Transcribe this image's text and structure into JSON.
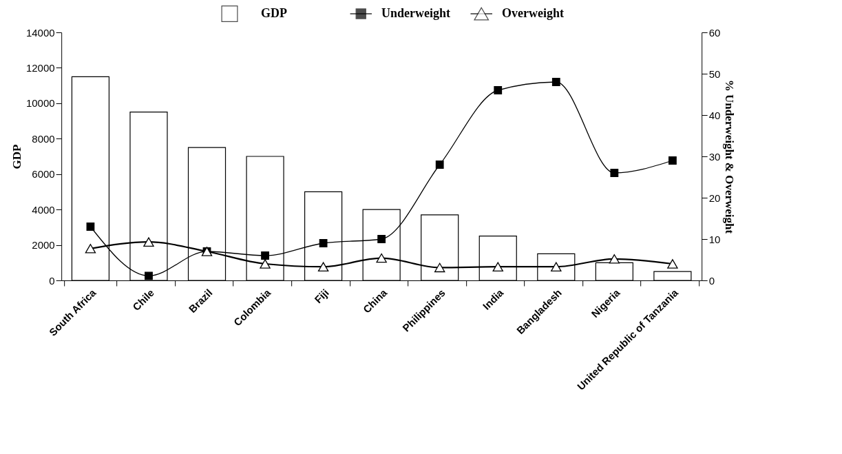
{
  "chart_data": {
    "type": "bar",
    "categories": [
      "South Africa",
      "Chile",
      "Brazil",
      "Colombia",
      "Fiji",
      "China",
      "Philippines",
      "India",
      "Bangladesh",
      "Nigeria",
      "United Republic of Tanzania"
    ],
    "ylabel": "GDP",
    "y2label": "% Underweight & Overweight",
    "ylim": [
      0,
      14000
    ],
    "yticks": [
      0,
      2000,
      4000,
      6000,
      8000,
      10000,
      12000,
      14000
    ],
    "y2lim": [
      0,
      60
    ],
    "y2ticks": [
      0,
      10,
      20,
      30,
      40,
      50,
      60
    ],
    "legend": "top",
    "grid": false,
    "series": [
      {
        "name": "GDP",
        "color": "#ffffff",
        "values": [
          11500,
          9500,
          7500,
          7000,
          5000,
          4000,
          3700,
          2500,
          1500,
          1000,
          500
        ]
      },
      {
        "name": "Underweight",
        "type": "line",
        "axis": "y2",
        "marker": "square",
        "color": "#000000",
        "values": [
          13,
          1.1,
          7,
          6,
          9,
          10,
          28,
          46,
          48,
          26,
          29
        ]
      },
      {
        "name": "Overweight",
        "type": "line",
        "axis": "y2",
        "marker": "triangle",
        "color": "#000000",
        "values": [
          7.7,
          9.3,
          7,
          4,
          3.3,
          5.4,
          3.1,
          3.3,
          3.3,
          5.2,
          4
        ]
      }
    ]
  }
}
